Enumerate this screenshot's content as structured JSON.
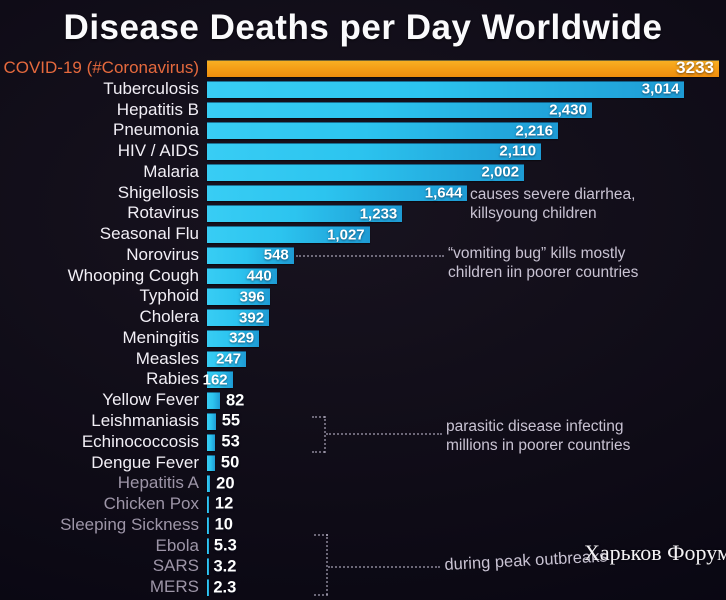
{
  "watermark": {
    "text": "Харьков Форум"
  },
  "chart_data": {
    "type": "bar",
    "orientation": "horizontal",
    "title": "Disease Deaths per Day Worldwide",
    "xlabel": "",
    "ylabel": "",
    "value_axis": {
      "min": 0,
      "max": 3233,
      "ticks_hidden": true
    },
    "legend": "none",
    "grid": false,
    "categories": [
      "COVID-19 (#Coronavirus)",
      "Tuberculosis",
      "Hepatitis B",
      "Pneumonia",
      "HIV / AIDS",
      "Malaria",
      "Shigellosis",
      "Rotavirus",
      "Seasonal Flu",
      "Norovirus",
      "Whooping Cough",
      "Typhoid",
      "Cholera",
      "Meningitis",
      "Measles",
      "Rabies",
      "Yellow Fever",
      "Leishmaniasis",
      "Echinococcosis",
      "Dengue Fever",
      "Hepatitis A",
      "Chicken Pox",
      "Sleeping Sickness",
      "Ebola",
      "SARS",
      "MERS"
    ],
    "bars": [
      {
        "label": "COVID-19 (#Coronavirus)",
        "value": 3233,
        "display": "3233",
        "highlight": true,
        "dim": false
      },
      {
        "label": "Tuberculosis",
        "value": 3014,
        "display": "3,014",
        "highlight": false,
        "dim": false
      },
      {
        "label": "Hepatitis B",
        "value": 2430,
        "display": "2,430",
        "highlight": false,
        "dim": false
      },
      {
        "label": "Pneumonia",
        "value": 2216,
        "display": "2,216",
        "highlight": false,
        "dim": false
      },
      {
        "label": "HIV / AIDS",
        "value": 2110,
        "display": "2,110",
        "highlight": false,
        "dim": false
      },
      {
        "label": "Malaria",
        "value": 2002,
        "display": "2,002",
        "highlight": false,
        "dim": false
      },
      {
        "label": "Shigellosis",
        "value": 1644,
        "display": "1,644",
        "highlight": false,
        "dim": false
      },
      {
        "label": "Rotavirus",
        "value": 1233,
        "display": "1,233",
        "highlight": false,
        "dim": false
      },
      {
        "label": "Seasonal Flu",
        "value": 1027,
        "display": "1,027",
        "highlight": false,
        "dim": false
      },
      {
        "label": "Norovirus",
        "value": 548,
        "display": "548",
        "highlight": false,
        "dim": false
      },
      {
        "label": "Whooping Cough",
        "value": 440,
        "display": "440",
        "highlight": false,
        "dim": false
      },
      {
        "label": "Typhoid",
        "value": 396,
        "display": "396",
        "highlight": false,
        "dim": false
      },
      {
        "label": "Cholera",
        "value": 392,
        "display": "392",
        "highlight": false,
        "dim": false
      },
      {
        "label": "Meningitis",
        "value": 329,
        "display": "329",
        "highlight": false,
        "dim": false
      },
      {
        "label": "Measles",
        "value": 247,
        "display": "247",
        "highlight": false,
        "dim": false
      },
      {
        "label": "Rabies",
        "value": 162,
        "display": "162",
        "highlight": false,
        "dim": false
      },
      {
        "label": "Yellow Fever",
        "value": 82,
        "display": "82",
        "highlight": false,
        "dim": false
      },
      {
        "label": "Leishmaniasis",
        "value": 55,
        "display": "55",
        "highlight": false,
        "dim": false
      },
      {
        "label": "Echinococcosis",
        "value": 53,
        "display": "53",
        "highlight": false,
        "dim": false
      },
      {
        "label": "Dengue Fever",
        "value": 50,
        "display": "50",
        "highlight": false,
        "dim": false
      },
      {
        "label": "Hepatitis A",
        "value": 20,
        "display": "20",
        "highlight": false,
        "dim": true
      },
      {
        "label": "Chicken Pox",
        "value": 12,
        "display": "12",
        "highlight": false,
        "dim": true
      },
      {
        "label": "Sleeping Sickness",
        "value": 10,
        "display": "10",
        "highlight": false,
        "dim": true
      },
      {
        "label": "Ebola",
        "value": 5.3,
        "display": "5.3",
        "highlight": false,
        "dim": true
      },
      {
        "label": "SARS",
        "value": 3.2,
        "display": "3.2",
        "highlight": false,
        "dim": true
      },
      {
        "label": "MERS",
        "value": 2.3,
        "display": "2.3",
        "highlight": false,
        "dim": true
      }
    ],
    "annotations": {
      "shigellosis": {
        "line1": "causes severe diarrhea,",
        "line2": "killsyoung children"
      },
      "norovirus": {
        "line1": "“vomiting bug” kills mostly",
        "line2": "children iin poorer countries"
      },
      "parasitic": {
        "line1": "parasitic disease infecting",
        "line2": "millions in poorer countries"
      },
      "outbreaks": {
        "line1": "during peak outbreaks"
      }
    },
    "colors": {
      "background": "#0e0b16",
      "covid_bar": "#f5a01a",
      "covid_label": "#e5693d",
      "bar_gradient_start": "#38cdf4",
      "bar_gradient_end": "#1e9bd4",
      "label": "#f2eff6",
      "label_dim": "#9d95a7",
      "value_text": "#ffffff",
      "annotation": "#c9c3d3"
    }
  }
}
